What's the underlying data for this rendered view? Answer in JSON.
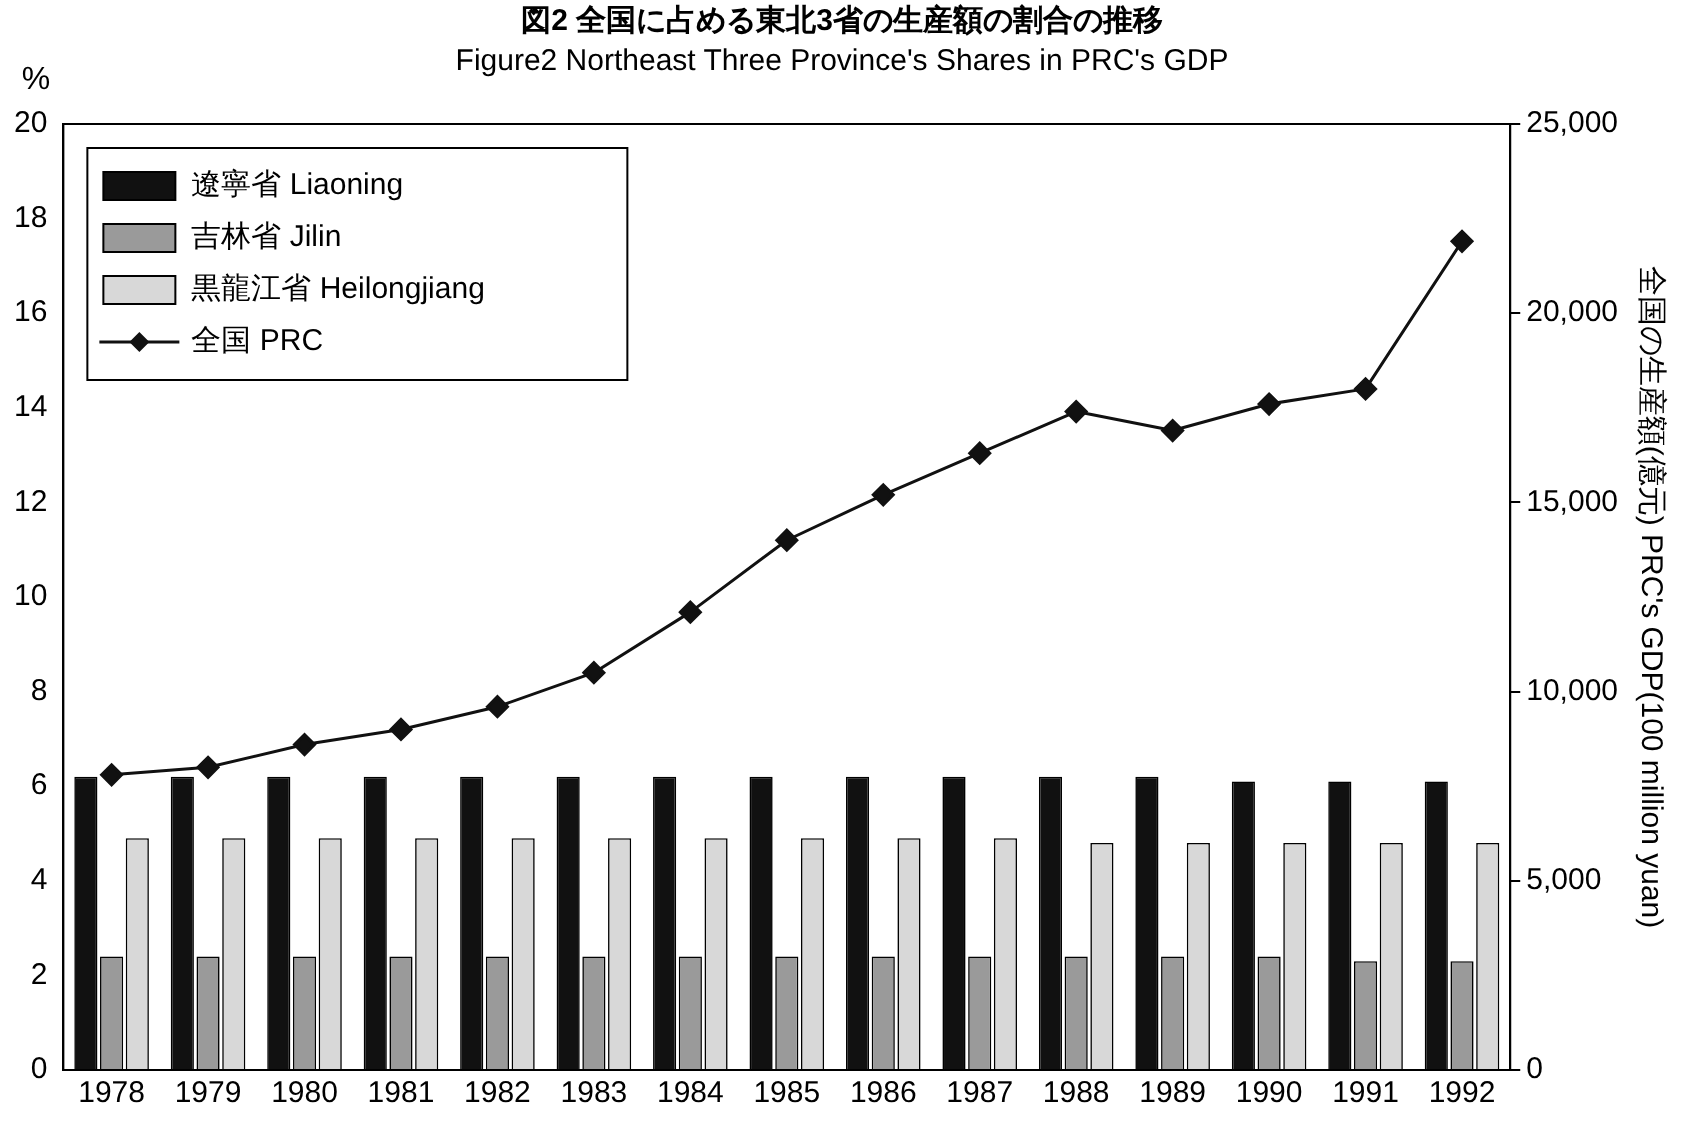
{
  "chart_data": {
    "type": "bar",
    "title": "図2 全国に占める東北3省の生産額の割合の推移",
    "subtitle": "Figure2 Northeast Three Province's Shares in PRC's GDP",
    "ylabel": "%",
    "y2label": "全国の生産額(億元) PRC's GDP(100 million yuan)",
    "categories": [
      "1978",
      "1979",
      "1980",
      "1981",
      "1982",
      "1983",
      "1984",
      "1985",
      "1986",
      "1987",
      "1988",
      "1989",
      "1990",
      "1991",
      "1992"
    ],
    "series": [
      {
        "name": "遼寧省 Liaoning",
        "color": "#111111",
        "values": [
          6.2,
          6.2,
          6.2,
          6.2,
          6.2,
          6.2,
          6.2,
          6.2,
          6.2,
          6.2,
          6.2,
          6.2,
          6.1,
          6.1,
          6.1
        ]
      },
      {
        "name": "吉林省 Jilin",
        "color": "#9a9a9a",
        "values": [
          2.4,
          2.4,
          2.4,
          2.4,
          2.4,
          2.4,
          2.4,
          2.4,
          2.4,
          2.4,
          2.4,
          2.4,
          2.4,
          2.3,
          2.3
        ]
      },
      {
        "name": "黒龍江省 Heilongjiang",
        "color": "#d8d8d8",
        "values": [
          4.9,
          4.9,
          4.9,
          4.9,
          4.9,
          4.9,
          4.9,
          4.9,
          4.9,
          4.9,
          4.8,
          4.8,
          4.8,
          4.8,
          4.8
        ]
      },
      {
        "name": "全国 PRC",
        "type": "line",
        "axis": "y2",
        "color": "#111111",
        "values": [
          7800,
          8000,
          8600,
          9000,
          9600,
          10500,
          12100,
          14000,
          15200,
          16300,
          17400,
          16900,
          17600,
          18000,
          21900
        ]
      }
    ],
    "ylim": [
      0,
      20
    ],
    "yticks": [
      0,
      2,
      4,
      6,
      8,
      10,
      12,
      14,
      16,
      18,
      20
    ],
    "y2lim": [
      0,
      25000
    ],
    "y2ticks": [
      {
        "value": 0,
        "label": "0"
      },
      {
        "value": 5000,
        "label": "5,000"
      },
      {
        "value": 10000,
        "label": "10,000"
      },
      {
        "value": 15000,
        "label": "15,000"
      },
      {
        "value": 20000,
        "label": "20,000"
      },
      {
        "value": 25000,
        "label": "25,000"
      }
    ],
    "marker": "diamond",
    "line_style": "solid",
    "grid": false,
    "legend": "top left"
  }
}
